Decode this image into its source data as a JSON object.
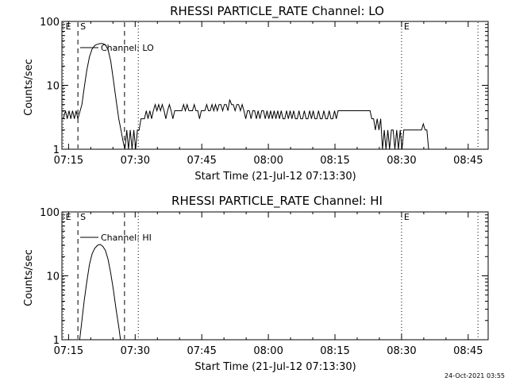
{
  "footer_timestamp": "24-Oct-2021 03:55",
  "chart_data": [
    {
      "type": "line",
      "title": "RHESSI PARTICLE_RATE Channel: LO",
      "xlabel": "Start Time (21-Jul-12 07:13:30)",
      "ylabel": "Counts/sec",
      "x_unit": "minutes since 07:13:30",
      "xlim": [
        0,
        96
      ],
      "ylim": [
        1,
        100
      ],
      "y_scale": "log",
      "x_ticks": [
        {
          "x": 1.5,
          "label": "07:15"
        },
        {
          "x": 16.5,
          "label": "07:30"
        },
        {
          "x": 31.5,
          "label": "07:45"
        },
        {
          "x": 46.5,
          "label": "08:00"
        },
        {
          "x": 61.5,
          "label": "08:15"
        },
        {
          "x": 76.5,
          "label": "08:30"
        },
        {
          "x": 91.5,
          "label": "08:45"
        }
      ],
      "y_ticks": [
        {
          "y": 1,
          "label": "1"
        },
        {
          "y": 10,
          "label": "10"
        },
        {
          "y": 100,
          "label": "100"
        }
      ],
      "legend": {
        "label": "Channel: LO",
        "position": "top-left"
      },
      "markers": [
        {
          "x": 0.3,
          "label": "E",
          "style": "dotted"
        },
        {
          "x": 3.6,
          "label": "S",
          "style": "dashed"
        },
        {
          "x": 14.1,
          "label": "",
          "style": "dashed"
        },
        {
          "x": 17.2,
          "label": "",
          "style": "dotted"
        },
        {
          "x": 76.5,
          "label": "E",
          "style": "dotted"
        },
        {
          "x": 93.7,
          "label": "",
          "style": "dotted"
        }
      ],
      "series": [
        {
          "name": "Channel: LO",
          "points": [
            [
              0.3,
              3
            ],
            [
              0.8,
              4
            ],
            [
              1.2,
              3
            ],
            [
              1.6,
              4
            ],
            [
              2.0,
              3
            ],
            [
              2.4,
              4
            ],
            [
              2.8,
              3
            ],
            [
              3.2,
              4
            ],
            [
              3.6,
              3
            ],
            [
              4.5,
              5
            ],
            [
              5.0,
              9
            ],
            [
              5.6,
              17
            ],
            [
              6.2,
              28
            ],
            [
              6.8,
              37
            ],
            [
              7.4,
              42
            ],
            [
              8.0,
              44
            ],
            [
              8.6,
              45
            ],
            [
              9.2,
              45
            ],
            [
              9.8,
              43
            ],
            [
              10.4,
              36
            ],
            [
              11.0,
              24
            ],
            [
              11.6,
              12
            ],
            [
              12.2,
              6
            ],
            [
              12.8,
              3
            ],
            [
              13.3,
              2
            ],
            [
              13.8,
              1.3
            ],
            [
              14.2,
              1
            ],
            [
              14.6,
              2
            ],
            [
              15.0,
              1
            ],
            [
              15.4,
              2
            ],
            [
              15.8,
              1
            ],
            [
              16.2,
              2
            ],
            [
              16.6,
              1
            ],
            [
              17.0,
              2
            ],
            [
              17.4,
              2
            ],
            [
              17.8,
              3
            ],
            [
              18.2,
              3
            ],
            [
              18.6,
              3
            ],
            [
              19.0,
              4
            ],
            [
              19.4,
              3
            ],
            [
              19.8,
              4
            ],
            [
              20.2,
              3
            ],
            [
              20.6,
              4
            ],
            [
              21.0,
              5
            ],
            [
              21.4,
              4
            ],
            [
              21.8,
              5
            ],
            [
              22.2,
              4
            ],
            [
              22.6,
              5
            ],
            [
              23.0,
              4
            ],
            [
              23.4,
              3
            ],
            [
              23.8,
              4
            ],
            [
              24.2,
              5
            ],
            [
              24.6,
              4
            ],
            [
              25.0,
              3
            ],
            [
              25.4,
              4
            ],
            [
              25.8,
              4
            ],
            [
              26.2,
              4
            ],
            [
              26.6,
              4
            ],
            [
              27.0,
              4
            ],
            [
              27.4,
              5
            ],
            [
              27.8,
              4
            ],
            [
              28.2,
              5
            ],
            [
              28.6,
              4
            ],
            [
              29.0,
              4
            ],
            [
              29.4,
              4
            ],
            [
              29.8,
              5
            ],
            [
              30.2,
              4
            ],
            [
              30.6,
              4
            ],
            [
              31.0,
              3
            ],
            [
              31.4,
              4
            ],
            [
              31.8,
              4
            ],
            [
              32.2,
              4
            ],
            [
              32.6,
              5
            ],
            [
              33.0,
              4
            ],
            [
              33.4,
              4
            ],
            [
              33.8,
              5
            ],
            [
              34.2,
              4
            ],
            [
              34.6,
              5
            ],
            [
              35.0,
              4
            ],
            [
              35.4,
              5
            ],
            [
              35.8,
              5
            ],
            [
              36.2,
              4
            ],
            [
              36.6,
              5
            ],
            [
              37.0,
              5
            ],
            [
              37.4,
              4
            ],
            [
              37.8,
              6
            ],
            [
              38.2,
              5
            ],
            [
              38.6,
              5
            ],
            [
              39.0,
              4
            ],
            [
              39.4,
              5
            ],
            [
              39.8,
              5
            ],
            [
              40.2,
              4
            ],
            [
              40.6,
              5
            ],
            [
              41.0,
              4
            ],
            [
              41.4,
              3
            ],
            [
              41.8,
              4
            ],
            [
              42.2,
              4
            ],
            [
              42.6,
              3
            ],
            [
              43.0,
              4
            ],
            [
              43.4,
              4
            ],
            [
              43.8,
              3
            ],
            [
              44.2,
              4
            ],
            [
              44.6,
              3
            ],
            [
              45.0,
              4
            ],
            [
              45.4,
              4
            ],
            [
              45.8,
              3
            ],
            [
              46.2,
              4
            ],
            [
              46.6,
              3
            ],
            [
              47.0,
              4
            ],
            [
              47.4,
              3
            ],
            [
              47.8,
              4
            ],
            [
              48.2,
              3
            ],
            [
              48.6,
              4
            ],
            [
              49.0,
              3
            ],
            [
              49.4,
              4
            ],
            [
              49.8,
              3
            ],
            [
              50.2,
              3
            ],
            [
              50.6,
              4
            ],
            [
              51.0,
              3
            ],
            [
              51.4,
              4
            ],
            [
              51.8,
              3
            ],
            [
              52.2,
              4
            ],
            [
              52.6,
              3
            ],
            [
              53.0,
              3
            ],
            [
              53.4,
              4
            ],
            [
              53.8,
              3
            ],
            [
              54.2,
              3
            ],
            [
              54.6,
              4
            ],
            [
              55.0,
              3
            ],
            [
              55.4,
              3
            ],
            [
              55.8,
              4
            ],
            [
              56.2,
              3
            ],
            [
              56.6,
              4
            ],
            [
              57.0,
              3
            ],
            [
              57.4,
              3
            ],
            [
              57.8,
              4
            ],
            [
              58.2,
              3
            ],
            [
              58.6,
              3
            ],
            [
              59.0,
              4
            ],
            [
              59.4,
              3
            ],
            [
              59.8,
              3
            ],
            [
              60.2,
              4
            ],
            [
              60.6,
              3
            ],
            [
              61.0,
              3
            ],
            [
              61.4,
              4
            ],
            [
              61.8,
              3
            ],
            [
              62.2,
              4
            ],
            [
              62.6,
              4
            ],
            [
              63.0,
              4
            ],
            [
              63.4,
              4
            ],
            [
              63.8,
              4
            ],
            [
              64.2,
              4
            ],
            [
              64.6,
              4
            ],
            [
              65.0,
              4
            ],
            [
              65.4,
              4
            ],
            [
              65.8,
              4
            ],
            [
              66.2,
              4
            ],
            [
              66.6,
              4
            ],
            [
              67.0,
              4
            ],
            [
              67.4,
              4
            ],
            [
              67.8,
              4
            ],
            [
              68.2,
              4
            ],
            [
              68.6,
              4
            ],
            [
              69.0,
              4
            ],
            [
              69.4,
              4
            ],
            [
              69.8,
              3
            ],
            [
              70.2,
              3
            ],
            [
              70.6,
              2
            ],
            [
              71.0,
              3
            ],
            [
              71.4,
              2
            ],
            [
              71.8,
              3
            ],
            [
              72.2,
              1
            ],
            [
              72.6,
              2
            ],
            [
              73.0,
              1
            ],
            [
              73.4,
              2
            ],
            [
              73.8,
              1
            ],
            [
              74.2,
              2
            ],
            [
              74.6,
              2
            ],
            [
              75.0,
              1
            ],
            [
              75.4,
              2
            ],
            [
              75.8,
              1
            ],
            [
              76.2,
              2
            ],
            [
              76.6,
              1
            ],
            [
              77.0,
              2
            ],
            [
              77.4,
              2
            ],
            [
              77.8,
              2
            ],
            [
              78.2,
              2
            ],
            [
              78.6,
              2
            ],
            [
              79.0,
              2
            ],
            [
              79.4,
              2
            ],
            [
              79.8,
              2
            ],
            [
              80.2,
              2
            ],
            [
              80.6,
              2
            ],
            [
              81.0,
              2
            ],
            [
              81.4,
              2.5
            ],
            [
              81.8,
              2
            ],
            [
              82.2,
              2
            ],
            [
              82.6,
              1
            ]
          ]
        }
      ]
    },
    {
      "type": "line",
      "title": "RHESSI PARTICLE_RATE Channel: HI",
      "xlabel": "Start Time (21-Jul-12 07:13:30)",
      "ylabel": "Counts/sec",
      "x_unit": "minutes since 07:13:30",
      "xlim": [
        0,
        96
      ],
      "ylim": [
        1,
        100
      ],
      "y_scale": "log",
      "x_ticks": [
        {
          "x": 1.5,
          "label": "07:15"
        },
        {
          "x": 16.5,
          "label": "07:30"
        },
        {
          "x": 31.5,
          "label": "07:45"
        },
        {
          "x": 46.5,
          "label": "08:00"
        },
        {
          "x": 61.5,
          "label": "08:15"
        },
        {
          "x": 76.5,
          "label": "08:30"
        },
        {
          "x": 91.5,
          "label": "08:45"
        }
      ],
      "y_ticks": [
        {
          "y": 1,
          "label": "1"
        },
        {
          "y": 10,
          "label": "10"
        },
        {
          "y": 100,
          "label": "100"
        }
      ],
      "legend": {
        "label": "Channel: HI",
        "position": "top-left"
      },
      "markers": [
        {
          "x": 0.3,
          "label": "E",
          "style": "dotted"
        },
        {
          "x": 3.6,
          "label": "S",
          "style": "dashed"
        },
        {
          "x": 14.1,
          "label": "",
          "style": "dashed"
        },
        {
          "x": 17.2,
          "label": "",
          "style": "dotted"
        },
        {
          "x": 76.5,
          "label": "E",
          "style": "dotted"
        },
        {
          "x": 93.7,
          "label": "",
          "style": "dotted"
        }
      ],
      "series": [
        {
          "name": "Channel: HI",
          "points": [
            [
              4.0,
              1
            ],
            [
              4.5,
              2
            ],
            [
              5.0,
              4
            ],
            [
              5.6,
              8
            ],
            [
              6.2,
              15
            ],
            [
              6.8,
              22
            ],
            [
              7.4,
              27
            ],
            [
              8.0,
              30
            ],
            [
              8.6,
              31
            ],
            [
              9.2,
              29
            ],
            [
              9.8,
              25
            ],
            [
              10.4,
              18
            ],
            [
              11.0,
              11
            ],
            [
              11.6,
              6
            ],
            [
              12.2,
              3
            ],
            [
              12.8,
              1.6
            ],
            [
              13.2,
              1
            ]
          ]
        }
      ]
    }
  ]
}
